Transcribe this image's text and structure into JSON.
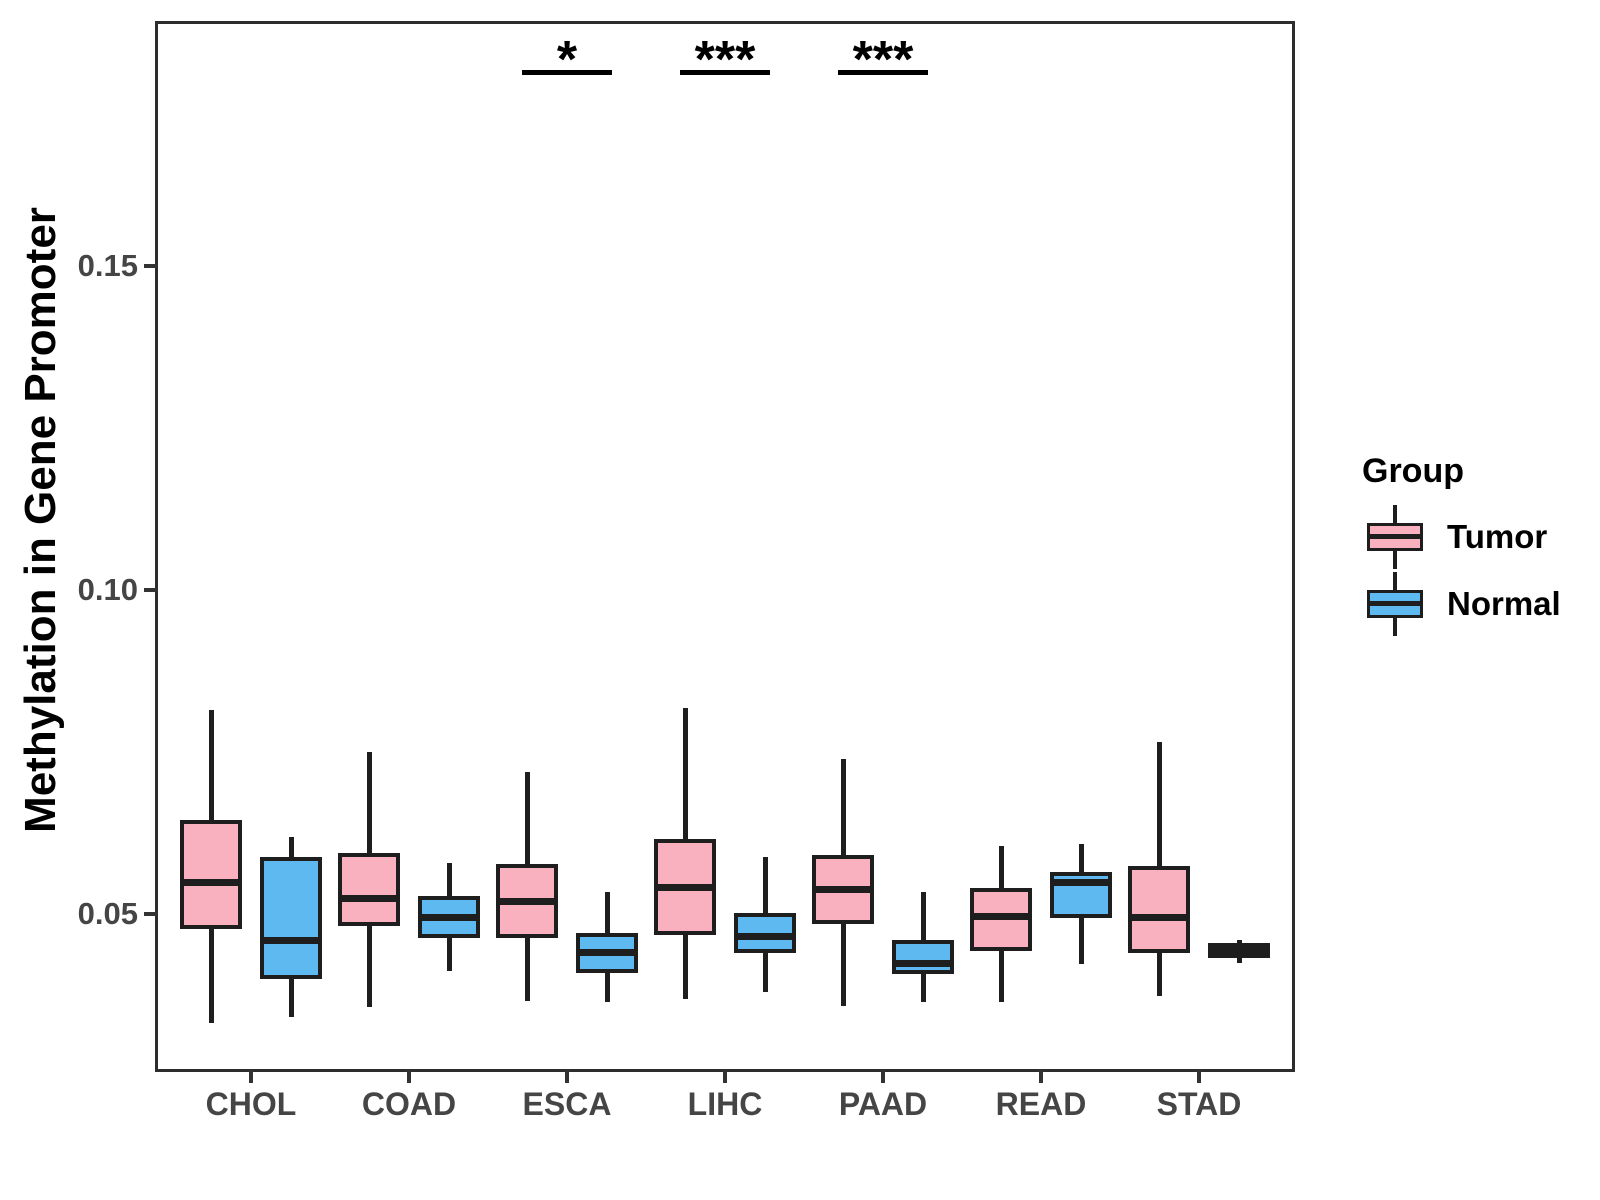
{
  "chart_data": {
    "type": "boxplot",
    "title": "",
    "ylabel": "Methylation in Gene Promoter",
    "xlabel": "",
    "categories": [
      "CHOL",
      "COAD",
      "ESCA",
      "LIHC",
      "PAAD",
      "READ",
      "STAD"
    ],
    "groups": [
      {
        "name": "Tumor",
        "fill": "#F9B1BF"
      },
      {
        "name": "Normal",
        "fill": "#5FB9F1"
      }
    ],
    "ylim": [
      0.026,
      0.1875
    ],
    "yticks": [
      {
        "value": 0.05,
        "label": "0.05"
      },
      {
        "value": 0.1,
        "label": "0.10"
      },
      {
        "value": 0.15,
        "label": "0.15"
      }
    ],
    "grid": false,
    "legend_position": "right",
    "boxes": [
      {
        "category": "CHOL",
        "group": "Tumor",
        "whisker_low": 0.0332,
        "q1": 0.0477,
        "median": 0.0549,
        "q3": 0.0646,
        "whisker_high": 0.0816
      },
      {
        "category": "CHOL",
        "group": "Normal",
        "whisker_low": 0.0341,
        "q1": 0.0401,
        "median": 0.046,
        "q3": 0.0588,
        "whisker_high": 0.0619
      },
      {
        "category": "COAD",
        "group": "Tumor",
        "whisker_low": 0.0357,
        "q1": 0.0482,
        "median": 0.0525,
        "q3": 0.0594,
        "whisker_high": 0.0751
      },
      {
        "category": "COAD",
        "group": "Normal",
        "whisker_low": 0.0412,
        "q1": 0.0463,
        "median": 0.0495,
        "q3": 0.0528,
        "whisker_high": 0.058
      },
      {
        "category": "ESCA",
        "group": "Tumor",
        "whisker_low": 0.0366,
        "q1": 0.0463,
        "median": 0.052,
        "q3": 0.0577,
        "whisker_high": 0.072
      },
      {
        "category": "ESCA",
        "group": "Normal",
        "whisker_low": 0.0365,
        "q1": 0.0409,
        "median": 0.0441,
        "q3": 0.0472,
        "whisker_high": 0.0535
      },
      {
        "category": "LIHC",
        "group": "Tumor",
        "whisker_low": 0.0369,
        "q1": 0.0469,
        "median": 0.0542,
        "q3": 0.0616,
        "whisker_high": 0.0819
      },
      {
        "category": "LIHC",
        "group": "Normal",
        "whisker_low": 0.0381,
        "q1": 0.0441,
        "median": 0.0466,
        "q3": 0.0502,
        "whisker_high": 0.0588
      },
      {
        "category": "PAAD",
        "group": "Tumor",
        "whisker_low": 0.0358,
        "q1": 0.0485,
        "median": 0.0539,
        "q3": 0.0592,
        "whisker_high": 0.074
      },
      {
        "category": "PAAD",
        "group": "Normal",
        "whisker_low": 0.0365,
        "q1": 0.0408,
        "median": 0.0425,
        "q3": 0.046,
        "whisker_high": 0.0535
      },
      {
        "category": "READ",
        "group": "Tumor",
        "whisker_low": 0.0365,
        "q1": 0.0443,
        "median": 0.0497,
        "q3": 0.054,
        "whisker_high": 0.0606
      },
      {
        "category": "READ",
        "group": "Normal",
        "whisker_low": 0.0423,
        "q1": 0.0495,
        "median": 0.0549,
        "q3": 0.0565,
        "whisker_high": 0.0609
      },
      {
        "category": "STAD",
        "group": "Tumor",
        "whisker_low": 0.0374,
        "q1": 0.0441,
        "median": 0.0495,
        "q3": 0.0575,
        "whisker_high": 0.0766
      },
      {
        "category": "STAD",
        "group": "Normal",
        "whisker_low": 0.0425,
        "q1": 0.0432,
        "median": 0.0444,
        "q3": 0.0456,
        "whisker_high": 0.0461
      }
    ],
    "significance": [
      {
        "category": "ESCA",
        "label": "*"
      },
      {
        "category": "LIHC",
        "label": "***"
      },
      {
        "category": "PAAD",
        "label": "***"
      }
    ]
  },
  "legend": {
    "title": "Group",
    "items": [
      "Tumor",
      "Normal"
    ]
  },
  "colors": {
    "tumor_fill": "#F9B1BF",
    "normal_fill": "#5FB9F1",
    "box_stroke": "#1E1E1E",
    "panel_border": "#2D2D2D",
    "axis_text": "#454545",
    "significance": "#000000"
  }
}
